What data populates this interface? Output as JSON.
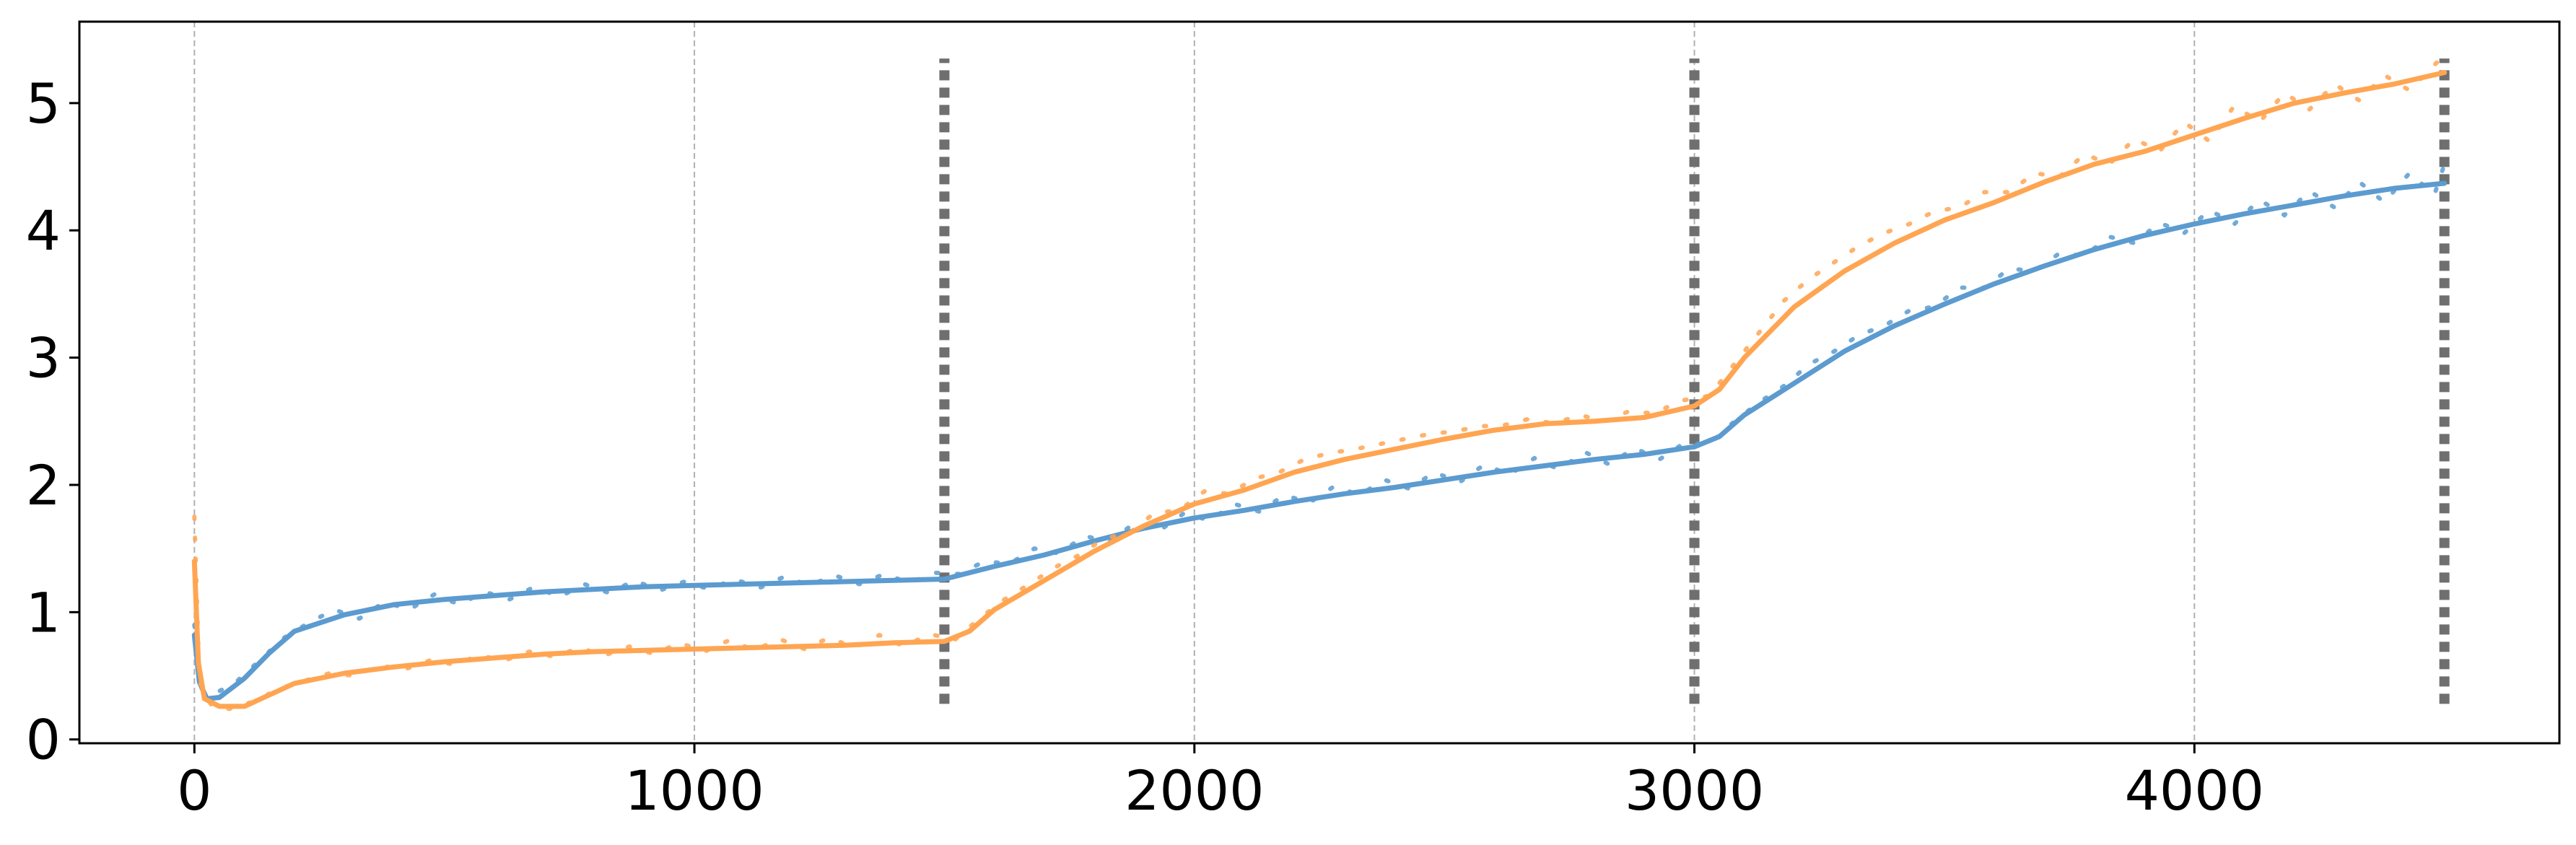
{
  "chart_data": {
    "type": "line",
    "title": "",
    "xlabel": "",
    "ylabel": "",
    "xlim": [
      -230,
      4730
    ],
    "ylim": [
      -0.03,
      5.64
    ],
    "grid": "x-dashed",
    "x_ticks": [
      {
        "value": 0,
        "label": "0"
      },
      {
        "value": 1000,
        "label": "1000"
      },
      {
        "value": 2000,
        "label": "2000"
      },
      {
        "value": 3000,
        "label": "3000"
      },
      {
        "value": 4000,
        "label": "4000"
      }
    ],
    "y_ticks": [
      {
        "value": 0,
        "label": "0"
      },
      {
        "value": 1,
        "label": "1"
      },
      {
        "value": 2,
        "label": "2"
      },
      {
        "value": 3,
        "label": "3"
      },
      {
        "value": 4,
        "label": "4"
      },
      {
        "value": 5,
        "label": "5"
      }
    ],
    "phase_markers": {
      "x": [
        1500,
        3000,
        4500
      ],
      "y_range": [
        0.28,
        5.35
      ],
      "color": "#6f6f6f"
    },
    "series": [
      {
        "color": "#5b9bd0",
        "smoothed": [
          [
            0,
            0.82
          ],
          [
            10,
            0.45
          ],
          [
            25,
            0.32
          ],
          [
            50,
            0.33
          ],
          [
            100,
            0.48
          ],
          [
            150,
            0.68
          ],
          [
            200,
            0.85
          ],
          [
            300,
            0.98
          ],
          [
            400,
            1.06
          ],
          [
            500,
            1.1
          ],
          [
            600,
            1.13
          ],
          [
            700,
            1.16
          ],
          [
            800,
            1.18
          ],
          [
            900,
            1.2
          ],
          [
            1000,
            1.21
          ],
          [
            1100,
            1.22
          ],
          [
            1200,
            1.23
          ],
          [
            1300,
            1.24
          ],
          [
            1400,
            1.25
          ],
          [
            1500,
            1.26
          ],
          [
            1600,
            1.36
          ],
          [
            1700,
            1.45
          ],
          [
            1800,
            1.56
          ],
          [
            1900,
            1.66
          ],
          [
            2000,
            1.74
          ],
          [
            2100,
            1.8
          ],
          [
            2200,
            1.87
          ],
          [
            2300,
            1.93
          ],
          [
            2400,
            1.98
          ],
          [
            2500,
            2.04
          ],
          [
            2600,
            2.1
          ],
          [
            2700,
            2.15
          ],
          [
            2800,
            2.2
          ],
          [
            2900,
            2.24
          ],
          [
            3000,
            2.3
          ],
          [
            3050,
            2.38
          ],
          [
            3100,
            2.55
          ],
          [
            3200,
            2.8
          ],
          [
            3300,
            3.05
          ],
          [
            3400,
            3.25
          ],
          [
            3500,
            3.42
          ],
          [
            3600,
            3.58
          ],
          [
            3700,
            3.72
          ],
          [
            3800,
            3.85
          ],
          [
            3900,
            3.96
          ],
          [
            4000,
            4.05
          ],
          [
            4100,
            4.13
          ],
          [
            4200,
            4.2
          ],
          [
            4300,
            4.27
          ],
          [
            4400,
            4.33
          ],
          [
            4500,
            4.37
          ]
        ],
        "raw": [
          [
            0,
            0.9
          ],
          [
            15,
            0.4
          ],
          [
            40,
            0.36
          ],
          [
            80,
            0.44
          ],
          [
            130,
            0.62
          ],
          [
            180,
            0.8
          ],
          [
            230,
            0.92
          ],
          [
            280,
            1.02
          ],
          [
            330,
            0.95
          ],
          [
            380,
            1.08
          ],
          [
            430,
            1.02
          ],
          [
            480,
            1.14
          ],
          [
            530,
            1.06
          ],
          [
            580,
            1.16
          ],
          [
            630,
            1.1
          ],
          [
            680,
            1.2
          ],
          [
            730,
            1.12
          ],
          [
            780,
            1.22
          ],
          [
            830,
            1.15
          ],
          [
            880,
            1.25
          ],
          [
            930,
            1.17
          ],
          [
            980,
            1.24
          ],
          [
            1030,
            1.18
          ],
          [
            1080,
            1.26
          ],
          [
            1130,
            1.19
          ],
          [
            1180,
            1.28
          ],
          [
            1230,
            1.21
          ],
          [
            1280,
            1.29
          ],
          [
            1330,
            1.22
          ],
          [
            1380,
            1.3
          ],
          [
            1430,
            1.23
          ],
          [
            1480,
            1.31
          ],
          [
            1530,
            1.3
          ],
          [
            1580,
            1.4
          ],
          [
            1630,
            1.38
          ],
          [
            1680,
            1.5
          ],
          [
            1730,
            1.46
          ],
          [
            1780,
            1.6
          ],
          [
            1830,
            1.55
          ],
          [
            1880,
            1.7
          ],
          [
            1930,
            1.64
          ],
          [
            1980,
            1.78
          ],
          [
            2030,
            1.72
          ],
          [
            2080,
            1.85
          ],
          [
            2130,
            1.79
          ],
          [
            2180,
            1.92
          ],
          [
            2230,
            1.86
          ],
          [
            2280,
            1.99
          ],
          [
            2330,
            1.92
          ],
          [
            2380,
            2.04
          ],
          [
            2430,
            1.97
          ],
          [
            2480,
            2.1
          ],
          [
            2530,
            2.02
          ],
          [
            2580,
            2.16
          ],
          [
            2630,
            2.08
          ],
          [
            2680,
            2.21
          ],
          [
            2730,
            2.12
          ],
          [
            2780,
            2.26
          ],
          [
            2830,
            2.16
          ],
          [
            2880,
            2.29
          ],
          [
            2930,
            2.2
          ],
          [
            2980,
            2.33
          ],
          [
            3030,
            2.32
          ],
          [
            3080,
            2.5
          ],
          [
            3130,
            2.65
          ],
          [
            3180,
            2.78
          ],
          [
            3230,
            2.95
          ],
          [
            3280,
            3.05
          ],
          [
            3330,
            3.18
          ],
          [
            3380,
            3.25
          ],
          [
            3430,
            3.37
          ],
          [
            3480,
            3.4
          ],
          [
            3530,
            3.55
          ],
          [
            3580,
            3.55
          ],
          [
            3630,
            3.7
          ],
          [
            3680,
            3.68
          ],
          [
            3730,
            3.82
          ],
          [
            3780,
            3.8
          ],
          [
            3830,
            3.95
          ],
          [
            3880,
            3.9
          ],
          [
            3930,
            4.06
          ],
          [
            3980,
            3.98
          ],
          [
            4030,
            4.16
          ],
          [
            4080,
            4.05
          ],
          [
            4130,
            4.24
          ],
          [
            4180,
            4.12
          ],
          [
            4230,
            4.31
          ],
          [
            4280,
            4.18
          ],
          [
            4330,
            4.38
          ],
          [
            4380,
            4.22
          ],
          [
            4430,
            4.45
          ],
          [
            4480,
            4.28
          ],
          [
            4500,
            4.52
          ]
        ]
      },
      {
        "color": "#ffa552",
        "smoothed": [
          [
            0,
            1.4
          ],
          [
            8,
            0.6
          ],
          [
            20,
            0.32
          ],
          [
            50,
            0.26
          ],
          [
            100,
            0.26
          ],
          [
            150,
            0.35
          ],
          [
            200,
            0.44
          ],
          [
            300,
            0.52
          ],
          [
            400,
            0.57
          ],
          [
            500,
            0.61
          ],
          [
            600,
            0.64
          ],
          [
            700,
            0.67
          ],
          [
            800,
            0.69
          ],
          [
            900,
            0.7
          ],
          [
            1000,
            0.71
          ],
          [
            1100,
            0.72
          ],
          [
            1200,
            0.73
          ],
          [
            1300,
            0.74
          ],
          [
            1400,
            0.76
          ],
          [
            1500,
            0.77
          ],
          [
            1550,
            0.85
          ],
          [
            1600,
            1.02
          ],
          [
            1700,
            1.25
          ],
          [
            1800,
            1.48
          ],
          [
            1900,
            1.68
          ],
          [
            2000,
            1.85
          ],
          [
            2100,
            1.96
          ],
          [
            2200,
            2.1
          ],
          [
            2300,
            2.2
          ],
          [
            2400,
            2.28
          ],
          [
            2500,
            2.36
          ],
          [
            2600,
            2.43
          ],
          [
            2700,
            2.48
          ],
          [
            2800,
            2.5
          ],
          [
            2900,
            2.53
          ],
          [
            3000,
            2.62
          ],
          [
            3050,
            2.75
          ],
          [
            3100,
            3.0
          ],
          [
            3200,
            3.4
          ],
          [
            3300,
            3.68
          ],
          [
            3400,
            3.9
          ],
          [
            3500,
            4.08
          ],
          [
            3600,
            4.22
          ],
          [
            3700,
            4.38
          ],
          [
            3800,
            4.52
          ],
          [
            3900,
            4.62
          ],
          [
            4000,
            4.75
          ],
          [
            4100,
            4.88
          ],
          [
            4200,
            5.0
          ],
          [
            4300,
            5.08
          ],
          [
            4400,
            5.15
          ],
          [
            4500,
            5.24
          ]
        ],
        "raw": [
          [
            0,
            1.75
          ],
          [
            10,
            0.45
          ],
          [
            35,
            0.26
          ],
          [
            70,
            0.24
          ],
          [
            120,
            0.3
          ],
          [
            170,
            0.4
          ],
          [
            220,
            0.46
          ],
          [
            270,
            0.52
          ],
          [
            320,
            0.5
          ],
          [
            370,
            0.58
          ],
          [
            420,
            0.55
          ],
          [
            470,
            0.62
          ],
          [
            520,
            0.59
          ],
          [
            570,
            0.66
          ],
          [
            620,
            0.62
          ],
          [
            670,
            0.69
          ],
          [
            720,
            0.65
          ],
          [
            770,
            0.72
          ],
          [
            820,
            0.66
          ],
          [
            870,
            0.73
          ],
          [
            920,
            0.67
          ],
          [
            970,
            0.76
          ],
          [
            1020,
            0.69
          ],
          [
            1070,
            0.78
          ],
          [
            1120,
            0.7
          ],
          [
            1170,
            0.79
          ],
          [
            1220,
            0.71
          ],
          [
            1270,
            0.8
          ],
          [
            1320,
            0.72
          ],
          [
            1370,
            0.82
          ],
          [
            1420,
            0.73
          ],
          [
            1470,
            0.83
          ],
          [
            1520,
            0.78
          ],
          [
            1570,
            0.95
          ],
          [
            1620,
            1.1
          ],
          [
            1670,
            1.22
          ],
          [
            1720,
            1.35
          ],
          [
            1770,
            1.45
          ],
          [
            1820,
            1.58
          ],
          [
            1870,
            1.62
          ],
          [
            1920,
            1.78
          ],
          [
            1970,
            1.8
          ],
          [
            2020,
            1.95
          ],
          [
            2070,
            1.93
          ],
          [
            2120,
            2.05
          ],
          [
            2170,
            2.1
          ],
          [
            2220,
            2.2
          ],
          [
            2270,
            2.25
          ],
          [
            2320,
            2.28
          ],
          [
            2370,
            2.32
          ],
          [
            2420,
            2.36
          ],
          [
            2470,
            2.4
          ],
          [
            2520,
            2.42
          ],
          [
            2570,
            2.46
          ],
          [
            2620,
            2.47
          ],
          [
            2670,
            2.52
          ],
          [
            2720,
            2.48
          ],
          [
            2770,
            2.55
          ],
          [
            2820,
            2.5
          ],
          [
            2870,
            2.58
          ],
          [
            2920,
            2.56
          ],
          [
            2970,
            2.66
          ],
          [
            3030,
            2.7
          ],
          [
            3080,
            2.95
          ],
          [
            3130,
            3.2
          ],
          [
            3180,
            3.45
          ],
          [
            3230,
            3.62
          ],
          [
            3280,
            3.75
          ],
          [
            3330,
            3.88
          ],
          [
            3380,
            3.98
          ],
          [
            3430,
            4.05
          ],
          [
            3480,
            4.15
          ],
          [
            3530,
            4.18
          ],
          [
            3580,
            4.3
          ],
          [
            3630,
            4.3
          ],
          [
            3680,
            4.45
          ],
          [
            3730,
            4.42
          ],
          [
            3780,
            4.6
          ],
          [
            3830,
            4.52
          ],
          [
            3880,
            4.72
          ],
          [
            3930,
            4.62
          ],
          [
            3980,
            4.85
          ],
          [
            4030,
            4.7
          ],
          [
            4080,
            4.98
          ],
          [
            4130,
            4.85
          ],
          [
            4180,
            5.08
          ],
          [
            4230,
            4.95
          ],
          [
            4280,
            5.15
          ],
          [
            4330,
            5.02
          ],
          [
            4380,
            5.22
          ],
          [
            4430,
            5.1
          ],
          [
            4480,
            5.3
          ],
          [
            4500,
            5.38
          ]
        ]
      }
    ]
  }
}
